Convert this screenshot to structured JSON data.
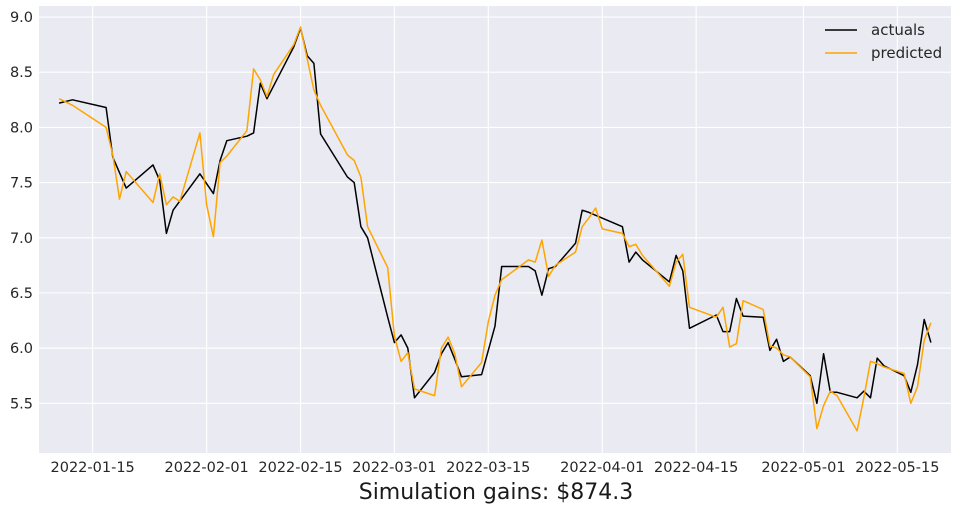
{
  "chart_data": {
    "type": "line",
    "title": "",
    "xlabel": "Simulation gains: $874.3",
    "ylabel": "",
    "x_axis_type": "date",
    "xlim": [
      "2022-01-07",
      "2022-05-23"
    ],
    "ylim": [
      5.05,
      9.1
    ],
    "x_ticks": [
      "2022-01-15",
      "2022-02-01",
      "2022-02-15",
      "2022-03-01",
      "2022-03-15",
      "2022-04-01",
      "2022-04-15",
      "2022-05-01",
      "2022-05-15"
    ],
    "y_ticks": [
      "5.5",
      "6.0",
      "6.5",
      "7.0",
      "7.5",
      "8.0",
      "8.5",
      "9.0"
    ],
    "grid": true,
    "legend_position": "top-right",
    "colors": {
      "background": "#eaeaf2",
      "grid": "#ffffff",
      "actuals": "#000000",
      "predicted": "#ffa500"
    },
    "series": [
      {
        "name": "actuals",
        "x": [
          "2022-01-10",
          "2022-01-12",
          "2022-01-17",
          "2022-01-18",
          "2022-01-20",
          "2022-01-24",
          "2022-01-25",
          "2022-01-26",
          "2022-01-27",
          "2022-01-31",
          "2022-02-02",
          "2022-02-03",
          "2022-02-04",
          "2022-02-07",
          "2022-02-08",
          "2022-02-09",
          "2022-02-10",
          "2022-02-14",
          "2022-02-15",
          "2022-02-16",
          "2022-02-17",
          "2022-02-18",
          "2022-02-22",
          "2022-02-23",
          "2022-02-24",
          "2022-02-25",
          "2022-02-28",
          "2022-03-01",
          "2022-03-02",
          "2022-03-03",
          "2022-03-04",
          "2022-03-07",
          "2022-03-08",
          "2022-03-09",
          "2022-03-10",
          "2022-03-11",
          "2022-03-14",
          "2022-03-15",
          "2022-03-16",
          "2022-03-17",
          "2022-03-21",
          "2022-03-22",
          "2022-03-23",
          "2022-03-24",
          "2022-03-25",
          "2022-03-28",
          "2022-03-29",
          "2022-03-30",
          "2022-04-04",
          "2022-04-05",
          "2022-04-06",
          "2022-04-07",
          "2022-04-11",
          "2022-04-12",
          "2022-04-13",
          "2022-04-14",
          "2022-04-18",
          "2022-04-19",
          "2022-04-20",
          "2022-04-21",
          "2022-04-22",
          "2022-04-25",
          "2022-04-26",
          "2022-04-27",
          "2022-04-28",
          "2022-04-29",
          "2022-05-02",
          "2022-05-03",
          "2022-05-04",
          "2022-05-05",
          "2022-05-06",
          "2022-05-09",
          "2022-05-10",
          "2022-05-11",
          "2022-05-12",
          "2022-05-13",
          "2022-05-16",
          "2022-05-17",
          "2022-05-18",
          "2022-05-19",
          "2022-05-20"
        ],
        "values": [
          8.22,
          8.25,
          8.18,
          7.73,
          7.45,
          7.66,
          7.52,
          7.04,
          7.25,
          7.58,
          7.4,
          7.7,
          7.88,
          7.92,
          7.95,
          8.4,
          8.26,
          8.73,
          8.9,
          8.65,
          8.58,
          7.94,
          7.55,
          7.5,
          7.1,
          7.0,
          6.28,
          6.05,
          6.12,
          6.0,
          5.55,
          5.78,
          5.95,
          6.05,
          5.9,
          5.74,
          5.76,
          5.98,
          6.2,
          6.74,
          6.74,
          6.7,
          6.48,
          6.72,
          6.74,
          6.95,
          7.25,
          7.23,
          7.1,
          6.78,
          6.87,
          6.8,
          6.6,
          6.84,
          6.7,
          6.18,
          6.3,
          6.15,
          6.15,
          6.45,
          6.29,
          6.28,
          5.98,
          6.08,
          5.88,
          5.92,
          5.75,
          5.5,
          5.95,
          5.6,
          5.6,
          5.55,
          5.61,
          5.55,
          5.91,
          5.84,
          5.75,
          5.6,
          5.85,
          6.26,
          6.05
        ]
      },
      {
        "name": "predicted",
        "x": [
          "2022-01-10",
          "2022-01-12",
          "2022-01-17",
          "2022-01-18",
          "2022-01-19",
          "2022-01-20",
          "2022-01-24",
          "2022-01-25",
          "2022-01-26",
          "2022-01-27",
          "2022-01-28",
          "2022-01-31",
          "2022-02-01",
          "2022-02-02",
          "2022-02-03",
          "2022-02-04",
          "2022-02-07",
          "2022-02-08",
          "2022-02-09",
          "2022-02-10",
          "2022-02-11",
          "2022-02-14",
          "2022-02-15",
          "2022-02-16",
          "2022-02-17",
          "2022-02-18",
          "2022-02-22",
          "2022-02-23",
          "2022-02-24",
          "2022-02-25",
          "2022-02-28",
          "2022-03-01",
          "2022-03-02",
          "2022-03-03",
          "2022-03-04",
          "2022-03-07",
          "2022-03-08",
          "2022-03-09",
          "2022-03-10",
          "2022-03-11",
          "2022-03-14",
          "2022-03-15",
          "2022-03-16",
          "2022-03-17",
          "2022-03-21",
          "2022-03-22",
          "2022-03-23",
          "2022-03-24",
          "2022-03-25",
          "2022-03-28",
          "2022-03-29",
          "2022-03-30",
          "2022-03-31",
          "2022-04-01",
          "2022-04-04",
          "2022-04-05",
          "2022-04-06",
          "2022-04-07",
          "2022-04-11",
          "2022-04-12",
          "2022-04-13",
          "2022-04-14",
          "2022-04-18",
          "2022-04-19",
          "2022-04-20",
          "2022-04-21",
          "2022-04-22",
          "2022-04-25",
          "2022-04-26",
          "2022-04-27",
          "2022-04-28",
          "2022-04-29",
          "2022-05-02",
          "2022-05-03",
          "2022-05-04",
          "2022-05-05",
          "2022-05-06",
          "2022-05-09",
          "2022-05-10",
          "2022-05-11",
          "2022-05-12",
          "2022-05-13",
          "2022-05-16",
          "2022-05-17",
          "2022-05-18",
          "2022-05-19",
          "2022-05-20"
        ],
        "values": [
          8.26,
          8.2,
          8.0,
          7.75,
          7.35,
          7.6,
          7.32,
          7.58,
          7.3,
          7.37,
          7.33,
          7.95,
          7.3,
          7.01,
          7.68,
          7.74,
          7.97,
          8.53,
          8.43,
          8.28,
          8.48,
          8.75,
          8.91,
          8.62,
          8.34,
          8.2,
          7.75,
          7.7,
          7.55,
          7.1,
          6.73,
          6.11,
          5.88,
          5.96,
          5.63,
          5.57,
          6.0,
          6.1,
          5.95,
          5.65,
          5.87,
          6.24,
          6.48,
          6.62,
          6.8,
          6.78,
          6.98,
          6.65,
          6.75,
          6.87,
          7.1,
          7.18,
          7.27,
          7.08,
          7.04,
          6.92,
          6.94,
          6.84,
          6.56,
          6.78,
          6.85,
          6.37,
          6.28,
          6.37,
          6.01,
          6.04,
          6.43,
          6.35,
          6.02,
          6.0,
          5.94,
          5.92,
          5.74,
          5.27,
          5.48,
          5.61,
          5.57,
          5.25,
          5.55,
          5.88,
          5.86,
          5.83,
          5.77,
          5.5,
          5.65,
          6.07,
          6.23
        ]
      }
    ]
  }
}
